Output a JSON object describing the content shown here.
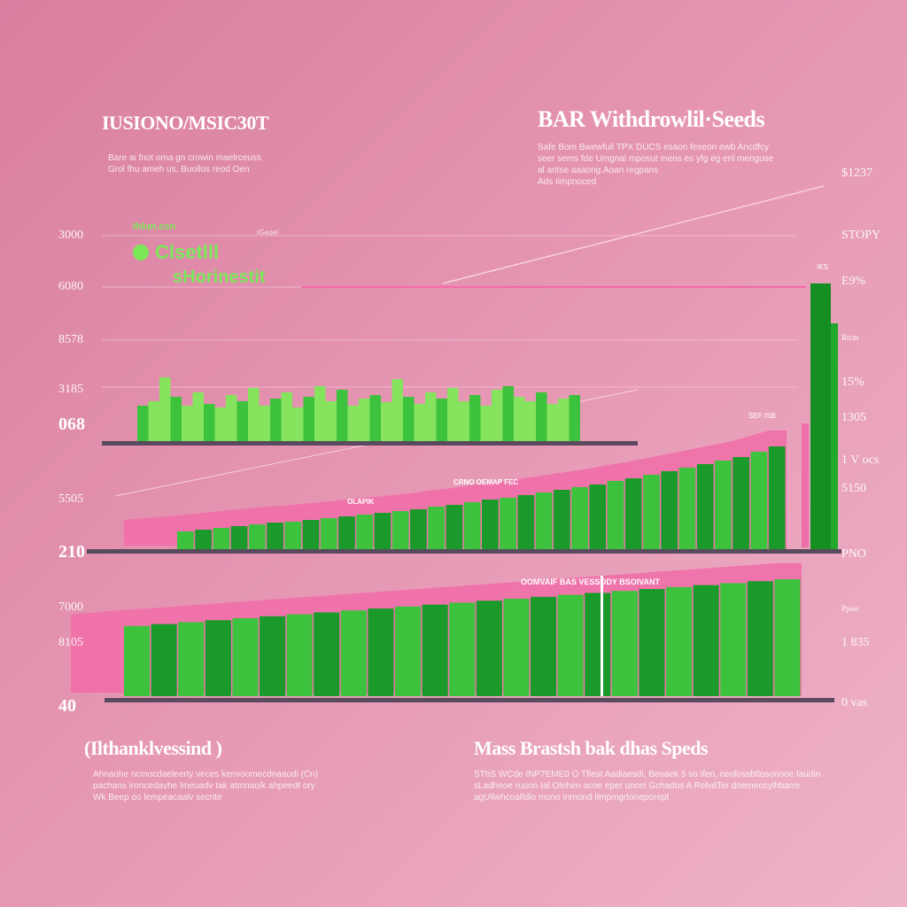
{
  "left_header": {
    "title": "IUSIONO/MSIC30T",
    "subtitle": "Bare ai fnot oma gn crowin maelrceuss\nGrol fhu ameh us. Buollos reod Oen"
  },
  "right_header": {
    "title": "BAR Withdrowlil·Seeds",
    "subtitle": "Safe Bom Bwewfull TPX DUCS esaon fexeon ewb Ancdfcy\nseer sems fde Umgnal mposut mens es yfg eg enl menguse\nal antse aaaong.Aoan regpans\nAds Iimpnoced"
  },
  "legend": {
    "small": "Ihlun.csn",
    "big": "Clsetlll",
    "second": "sHorinestit",
    "note": "rGeoel",
    "series_color": "#7be85a"
  },
  "left_ticks": [
    {
      "label": "3000",
      "style": ""
    },
    {
      "label": "6080",
      "style": ""
    },
    {
      "label": "8578",
      "style": ""
    },
    {
      "label": "3185",
      "style": ""
    },
    {
      "label": "068",
      "style": "b"
    },
    {
      "label": "5505",
      "style": ""
    },
    {
      "label": "210",
      "style": "b"
    },
    {
      "label": "7000",
      "style": ""
    },
    {
      "label": "8105",
      "style": ""
    },
    {
      "label": "40",
      "style": "b"
    }
  ],
  "right_ticks": [
    {
      "label": "$1237",
      "style": ""
    },
    {
      "label": "STOPY",
      "style": ""
    },
    {
      "label": "E9%",
      "style": ""
    },
    {
      "label": "Rtcm",
      "style": "s"
    },
    {
      "label": "15%",
      "style": ""
    },
    {
      "label": "1305",
      "style": ""
    },
    {
      "label": "1 V ocs",
      "style": ""
    },
    {
      "label": "5150",
      "style": ""
    },
    {
      "label": "PNO",
      "style": ""
    },
    {
      "label": "Ppeis",
      "style": "s"
    },
    {
      "label": "1 835",
      "style": ""
    },
    {
      "label": "0 vas",
      "style": ""
    }
  ],
  "annotations": {
    "panel2_label": "CRNO OEMAP FEC",
    "panel2_label2": "OLAPIK",
    "panel2_top": "SEF ISB",
    "panel3_label": "OOMVAIF BAS VESSODY BSOIVANT",
    "tall_bar_tag": "IKS"
  },
  "footer": {
    "left_title": "(Ilthanklvessind )",
    "left_text": "Ahnaohe ncmocdaeleerty veces kenvoomecdnaaodi (Cn)\npachans ironcedavhe lmeuadv tak atmnaolk ahpeedt ory\nWk Beep oo lempeacaalv secrite",
    "right_title": "Mass Brastsh bak dhas Speds",
    "right_text": "SThS WCde INP7EME0 O Tflest Aadiaesdi, Beoaek 5 so Ifen, ceofossbtlosonooe Iaudin\nsLadheoe ruuon Ial Olehen acoe eper uncel Gchados A RelvdTer doemeocylhbarre\nagUllwhcoalfdlo mono inmond Ilmpmgrtoneporept"
  },
  "chart_data": {
    "type": "bar",
    "colors": {
      "bar_light": "#86e35d",
      "bar_dark": "#1a9a2a",
      "bar_mid": "#3cc23c",
      "band": "#f06fa8",
      "axis": "#5a4a5e"
    },
    "panels": [
      {
        "name": "",
        "values": [
          40,
          45,
          72,
          50,
          40,
          55,
          42,
          38,
          52,
          45,
          60,
          40,
          48,
          55,
          38,
          50,
          62,
          45,
          58,
          40,
          48,
          52,
          44,
          70,
          50,
          42,
          55,
          48,
          60,
          45,
          52,
          40,
          58,
          62,
          50,
          45,
          55,
          42,
          48,
          52
        ],
        "band": false
      },
      {
        "name": "",
        "values": [
          20,
          22,
          24,
          26,
          28,
          30,
          31,
          33,
          35,
          37,
          39,
          41,
          43,
          45,
          48,
          50,
          53,
          56,
          58,
          61,
          64,
          67,
          70,
          73,
          77,
          80,
          84,
          88,
          92,
          96,
          100,
          104,
          110,
          116
        ],
        "band": true
      },
      {
        "name": "",
        "values": [
          72,
          74,
          76,
          78,
          80,
          82,
          84,
          86,
          88,
          90,
          92,
          94,
          96,
          98,
          100,
          102,
          104,
          106,
          108,
          110,
          112,
          114,
          116,
          118,
          120
        ],
        "band": true
      }
    ],
    "highlight_bars": [
      300,
      255
    ]
  }
}
